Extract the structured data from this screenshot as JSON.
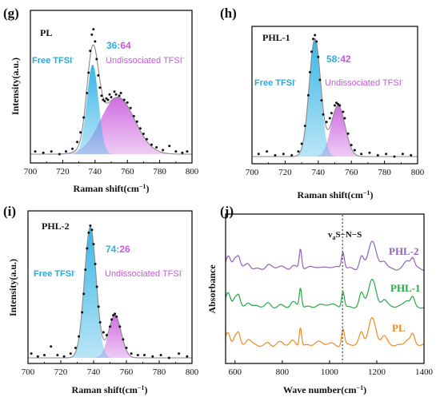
{
  "colors": {
    "free_fill": "#3ab6e6",
    "undis_fill": "#cf6ee0",
    "fit_line": "#8a8a8a",
    "point": "#111111",
    "PHL-2": "#8e63b6",
    "PHL-1": "#26a844",
    "PL": "#f08a1c",
    "ratio_free": "#2fb0e0",
    "ratio_undis": "#c55bd6"
  },
  "chart_data": [
    {
      "panel": "(g)",
      "type": "area",
      "sample": "PL",
      "ratio_free": "36",
      "ratio_sep": ":",
      "ratio_undis": "64",
      "free_label": "Free TFSI",
      "undis_label": "Undissociated TFSI",
      "label_sup": "-",
      "xlabel": "Raman shift(cm",
      "xlabel_sup": "−1",
      "xlabel_end": ")",
      "ylabel": "Intensity(a.u.)",
      "xlim": [
        700,
        800
      ],
      "xticks": [
        "700",
        "720",
        "740",
        "760",
        "780",
        "800"
      ],
      "peaks": [
        {
          "name": "Free TFSI",
          "center": 738.5,
          "amp": 0.66,
          "sigma": 3.6
        },
        {
          "name": "Undissociated TFSI",
          "center": 754,
          "amp": 0.42,
          "sigma": 10.5
        }
      ],
      "points": [
        [
          703,
          0.02
        ],
        [
          708,
          0.01
        ],
        [
          713,
          0.02
        ],
        [
          718,
          0.0
        ],
        [
          722,
          0.02
        ],
        [
          726,
          0.04
        ],
        [
          729,
          0.09
        ],
        [
          731,
          0.16
        ],
        [
          733,
          0.27
        ],
        [
          735,
          0.45
        ],
        [
          736,
          0.6
        ],
        [
          737,
          0.76
        ],
        [
          738,
          0.88
        ],
        [
          739,
          0.92
        ],
        [
          740,
          0.83
        ],
        [
          741,
          0.7
        ],
        [
          742,
          0.58
        ],
        [
          743,
          0.49
        ],
        [
          744,
          0.43
        ],
        [
          745,
          0.4
        ],
        [
          746,
          0.39
        ],
        [
          747,
          0.41
        ],
        [
          748,
          0.4
        ],
        [
          749,
          0.44
        ],
        [
          750,
          0.42
        ],
        [
          752,
          0.46
        ],
        [
          753,
          0.44
        ],
        [
          755,
          0.43
        ],
        [
          756,
          0.45
        ],
        [
          758,
          0.4
        ],
        [
          760,
          0.38
        ],
        [
          762,
          0.34
        ],
        [
          764,
          0.28
        ],
        [
          766,
          0.24
        ],
        [
          768,
          0.19
        ],
        [
          770,
          0.15
        ],
        [
          772,
          0.11
        ],
        [
          775,
          0.07
        ],
        [
          778,
          0.05
        ],
        [
          782,
          0.03
        ],
        [
          786,
          0.06
        ],
        [
          790,
          0.02
        ],
        [
          794,
          0.01
        ],
        [
          797,
          0.02
        ]
      ]
    },
    {
      "panel": "(h)",
      "type": "area",
      "sample": "PHL-1",
      "ratio_free": "58",
      "ratio_sep": ":",
      "ratio_undis": "42",
      "free_label": "Free TFSI",
      "undis_label": "Undissociated TFSI",
      "label_sup": "-",
      "xlabel": "Raman shift(cm",
      "xlabel_sup": "−1",
      "xlabel_end": ")",
      "ylabel": "",
      "xlim": [
        700,
        800
      ],
      "xticks": [
        "700",
        "720",
        "740",
        "760",
        "780",
        "800"
      ],
      "peaks": [
        {
          "name": "Free TFSI",
          "center": 738,
          "amp": 0.92,
          "sigma": 3.5
        },
        {
          "name": "Undissociated TFSI",
          "center": 752,
          "amp": 0.4,
          "sigma": 4.2
        }
      ],
      "points": [
        [
          704,
          0.02
        ],
        [
          709,
          0.04
        ],
        [
          714,
          0.01
        ],
        [
          719,
          0.02
        ],
        [
          724,
          0.01
        ],
        [
          728,
          0.04
        ],
        [
          730,
          0.1
        ],
        [
          732,
          0.24
        ],
        [
          734,
          0.48
        ],
        [
          735,
          0.66
        ],
        [
          736,
          0.82
        ],
        [
          737,
          0.92
        ],
        [
          738,
          0.95
        ],
        [
          739,
          0.9
        ],
        [
          740,
          0.78
        ],
        [
          741,
          0.6
        ],
        [
          742,
          0.44
        ],
        [
          743,
          0.33
        ],
        [
          745,
          0.27
        ],
        [
          747,
          0.3
        ],
        [
          748,
          0.34
        ],
        [
          750,
          0.4
        ],
        [
          751,
          0.42
        ],
        [
          752,
          0.41
        ],
        [
          753,
          0.4
        ],
        [
          755,
          0.35
        ],
        [
          756,
          0.3
        ],
        [
          758,
          0.18
        ],
        [
          760,
          0.09
        ],
        [
          762,
          0.05
        ],
        [
          766,
          0.02
        ],
        [
          771,
          0.03
        ],
        [
          776,
          0.01
        ],
        [
          781,
          0.02
        ],
        [
          786,
          0.0
        ],
        [
          791,
          0.02
        ],
        [
          796,
          0.01
        ]
      ]
    },
    {
      "panel": "(i)",
      "type": "area",
      "sample": "PHL-2",
      "ratio_free": "74",
      "ratio_sep": ":",
      "ratio_undis": "26",
      "free_label": "Free TFSI",
      "undis_label": "Undissociated TFSI",
      "label_sup": "-",
      "xlabel": "Raman shift(cm",
      "xlabel_sup": "−1",
      "xlabel_end": ")",
      "ylabel": "Intensity(a.u.)",
      "xlim": [
        700,
        800
      ],
      "xticks": [
        "700",
        "720",
        "740",
        "760",
        "780",
        "800"
      ],
      "peaks": [
        {
          "name": "Free TFSI",
          "center": 738,
          "amp": 0.92,
          "sigma": 3.6
        },
        {
          "name": "Undissociated TFSI",
          "center": 753,
          "amp": 0.3,
          "sigma": 3.8
        }
      ],
      "points": [
        [
          702,
          0.03
        ],
        [
          706,
          0.01
        ],
        [
          710,
          0.02
        ],
        [
          714,
          0.08
        ],
        [
          718,
          0.02
        ],
        [
          722,
          0.01
        ],
        [
          726,
          0.03
        ],
        [
          729,
          0.07
        ],
        [
          731,
          0.15
        ],
        [
          733,
          0.32
        ],
        [
          734,
          0.45
        ],
        [
          735,
          0.62
        ],
        [
          736,
          0.77
        ],
        [
          737,
          0.88
        ],
        [
          738,
          0.93
        ],
        [
          739,
          0.9
        ],
        [
          740,
          0.8
        ],
        [
          741,
          0.66
        ],
        [
          742,
          0.5
        ],
        [
          743,
          0.36
        ],
        [
          744,
          0.25
        ],
        [
          746,
          0.18
        ],
        [
          748,
          0.16
        ],
        [
          750,
          0.22
        ],
        [
          751,
          0.27
        ],
        [
          752,
          0.3
        ],
        [
          753,
          0.31
        ],
        [
          754,
          0.29
        ],
        [
          756,
          0.22
        ],
        [
          758,
          0.13
        ],
        [
          760,
          0.07
        ],
        [
          763,
          0.03
        ],
        [
          767,
          0.02
        ],
        [
          771,
          0.02
        ],
        [
          776,
          0.01
        ],
        [
          781,
          0.02
        ],
        [
          786,
          0.0
        ],
        [
          792,
          0.03
        ],
        [
          797,
          0.01
        ]
      ]
    },
    {
      "panel": "(j)",
      "type": "line",
      "xlabel": "Wave number(cm",
      "xlabel_sup": "−1",
      "xlabel_end": ")",
      "ylabel": "Absorbance",
      "xlim": [
        560,
        1400
      ],
      "xticks": [
        "600",
        "800",
        "1000",
        "1200",
        "1400"
      ],
      "xtick_values": [
        600,
        800,
        1000,
        1200,
        1400
      ],
      "annotation": "v",
      "annotation_sub": "a",
      "annotation_rest": "S−N−S",
      "annotation_x": 1055,
      "bands": [
        {
          "center": 570,
          "amp": 0.45,
          "width": 10
        },
        {
          "center": 600,
          "amp": 0.35,
          "width": 8
        },
        {
          "center": 615,
          "amp": 0.4,
          "width": 7
        },
        {
          "center": 655,
          "amp": 0.2,
          "width": 10
        },
        {
          "center": 740,
          "amp": 0.1,
          "width": 10
        },
        {
          "center": 790,
          "amp": 0.08,
          "width": 12
        },
        {
          "center": 845,
          "amp": 0.14,
          "width": 10
        },
        {
          "center": 877,
          "amp": 0.7,
          "width": 5
        },
        {
          "center": 950,
          "amp": 0.08,
          "width": 15
        },
        {
          "center": 1000,
          "amp": 0.08,
          "width": 15
        },
        {
          "center": 1057,
          "amp": 0.6,
          "width": 6
        },
        {
          "center": 1135,
          "amp": 0.45,
          "width": 9
        },
        {
          "center": 1180,
          "amp": 1.0,
          "width": 16
        },
        {
          "center": 1230,
          "amp": 0.3,
          "width": 12
        },
        {
          "center": 1330,
          "amp": 0.25,
          "width": 12
        },
        {
          "center": 1352,
          "amp": 0.35,
          "width": 8
        }
      ],
      "series": [
        {
          "name": "PHL-2",
          "color": "#8e63b6",
          "offset": 2.0
        },
        {
          "name": "PHL-1",
          "color": "#26a844",
          "offset": 1.0
        },
        {
          "name": "PL",
          "color": "#f08a1c",
          "offset": 0.0
        }
      ]
    }
  ]
}
